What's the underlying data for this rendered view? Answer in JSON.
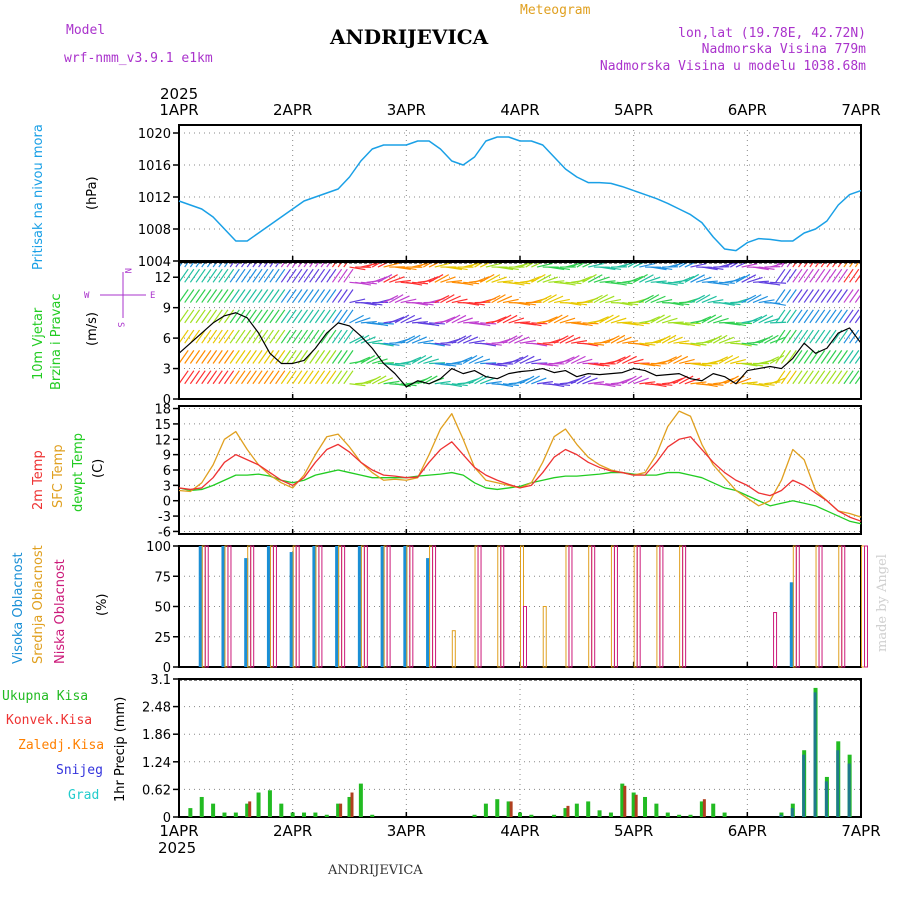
{
  "header": {
    "model_label": "Model",
    "model_name": "wrf-nmm_v3.9.1 e1km",
    "station": "ANDRIJEVICA",
    "meteogram": "Meteogram",
    "lonlat": "lon,lat (19.78E, 42.72N)",
    "elevation": "Nadmorska Visina 779m",
    "model_elevation": "Nadmorska Visina u modelu 1038.68m",
    "year_top": "2025",
    "year_bottom": "2025",
    "footer_station": "ANDRIJEVICA",
    "watermark": "made by Angel"
  },
  "colors": {
    "pressure": "#1aa0e6",
    "temp2m": "#ee3333",
    "sfc": "#e0a020",
    "dew": "#22cc22",
    "high_cloud": "#1a8fd6",
    "mid_cloud": "#e0a020",
    "low_cloud": "#cc1a7a",
    "total_precip": "#22bb22",
    "conv_precip": "#ee3333",
    "frz_precip": "#ff8000",
    "snow": "#3333dd",
    "grad": "#22cccc",
    "wind_hdr": "#aa33cc"
  },
  "chart_data": [
    {
      "type": "line",
      "panel": "pressure",
      "x_labels": [
        "1APR",
        "2APR",
        "3APR",
        "4APR",
        "5APR",
        "6APR",
        "7APR"
      ],
      "ylabel_name": "Pritisak na nivou mora",
      "ylabel_unit": "(hPa)",
      "ylim": [
        1004,
        1021
      ],
      "yticks": [
        1004,
        1008,
        1012,
        1016,
        1020
      ],
      "grid": true,
      "x": [
        0,
        0.1,
        0.2,
        0.3,
        0.4,
        0.5,
        0.6,
        0.7,
        0.8,
        0.9,
        1.0,
        1.1,
        1.2,
        1.3,
        1.4,
        1.5,
        1.6,
        1.7,
        1.8,
        1.9,
        2.0,
        2.1,
        2.2,
        2.3,
        2.4,
        2.5,
        2.6,
        2.7,
        2.8,
        2.9,
        3.0,
        3.1,
        3.2,
        3.3,
        3.4,
        3.5,
        3.6,
        3.7,
        3.8,
        3.9,
        4.0,
        4.1,
        4.2,
        4.3,
        4.4,
        4.5,
        4.6,
        4.7,
        4.8,
        4.9,
        5.0,
        5.1,
        5.2,
        5.3,
        5.4,
        5.5,
        5.6,
        5.7,
        5.8,
        5.9,
        6.0
      ],
      "series": [
        {
          "name": "Pritisak na nivou mora",
          "values": [
            1011.5,
            1011.0,
            1010.5,
            1009.5,
            1008.0,
            1006.5,
            1006.5,
            1007.5,
            1008.5,
            1009.5,
            1010.5,
            1011.5,
            1012.0,
            1012.5,
            1013.0,
            1014.5,
            1016.5,
            1018.0,
            1018.5,
            1018.5,
            1018.5,
            1019.0,
            1019.0,
            1018.0,
            1016.5,
            1016.0,
            1017.0,
            1019.0,
            1019.5,
            1019.5,
            1019.0,
            1019.0,
            1018.5,
            1017.0,
            1015.5,
            1014.5,
            1013.8,
            1013.8,
            1013.7,
            1013.3,
            1012.8,
            1012.3,
            1011.8,
            1011.2,
            1010.5,
            1009.8,
            1008.8,
            1007.0,
            1005.5,
            1005.3,
            1006.3,
            1006.8,
            1006.7,
            1006.5,
            1006.5,
            1007.5,
            1008.0,
            1009.0,
            1011.0,
            1012.3,
            1012.8
          ]
        }
      ]
    },
    {
      "type": "line",
      "panel": "wind",
      "x_labels": [
        "1APR",
        "2APR",
        "3APR",
        "4APR",
        "5APR",
        "6APR",
        "7APR"
      ],
      "ylabel_name": "10m Vjetar",
      "ylabel_name2": "Brzina i Pravac",
      "ylabel_unit": "(m/s)",
      "compass_n": "N",
      "compass_s": "S",
      "compass_w": "W",
      "compass_e": "E",
      "ylim": [
        0,
        13.5
      ],
      "yticks": [
        0,
        3,
        6,
        9,
        12
      ],
      "grid": true,
      "x": [
        0,
        0.1,
        0.2,
        0.3,
        0.4,
        0.5,
        0.6,
        0.7,
        0.8,
        0.9,
        1.0,
        1.1,
        1.2,
        1.3,
        1.4,
        1.5,
        1.6,
        1.7,
        1.8,
        1.9,
        2.0,
        2.1,
        2.2,
        2.3,
        2.4,
        2.5,
        2.6,
        2.7,
        2.8,
        2.9,
        3.0,
        3.1,
        3.2,
        3.3,
        3.4,
        3.5,
        3.6,
        3.7,
        3.8,
        3.9,
        4.0,
        4.1,
        4.2,
        4.3,
        4.4,
        4.5,
        4.6,
        4.7,
        4.8,
        4.9,
        5.0,
        5.1,
        5.2,
        5.3,
        5.4,
        5.5,
        5.6,
        5.7,
        5.8,
        5.9,
        6.0
      ],
      "series": [
        {
          "name": "speed",
          "values": [
            4.5,
            5.5,
            6.5,
            7.5,
            8.2,
            8.5,
            8.0,
            6.5,
            4.5,
            3.5,
            3.5,
            3.8,
            5.0,
            6.5,
            7.5,
            7.2,
            6.2,
            5.0,
            3.5,
            2.5,
            1.2,
            1.8,
            1.5,
            2.0,
            3.0,
            2.5,
            2.8,
            2.2,
            2.0,
            2.5,
            2.7,
            2.8,
            3.0,
            2.6,
            2.8,
            2.2,
            2.5,
            2.4,
            2.5,
            2.6,
            3.0,
            2.8,
            2.3,
            2.4,
            2.5,
            2.0,
            1.8,
            2.5,
            2.2,
            1.5,
            2.8,
            3.0,
            3.2,
            3.0,
            4.0,
            5.5,
            4.5,
            5.0,
            6.5,
            7.0,
            5.5
          ]
        }
      ]
    },
    {
      "type": "line",
      "panel": "temperature",
      "x_labels": [
        "1APR",
        "2APR",
        "3APR",
        "4APR",
        "5APR",
        "6APR",
        "7APR"
      ],
      "ylabel_names": [
        "2m Temp",
        "SFC Temp",
        "dewpt Temp"
      ],
      "ylabel_unit": "(C)",
      "ylim": [
        -6.5,
        18.5
      ],
      "yticks": [
        -6,
        -3,
        0,
        3,
        6,
        9,
        12,
        15,
        18
      ],
      "grid": true,
      "x": [
        0,
        0.1,
        0.2,
        0.3,
        0.4,
        0.5,
        0.6,
        0.7,
        0.8,
        0.9,
        1.0,
        1.1,
        1.2,
        1.3,
        1.4,
        1.5,
        1.6,
        1.7,
        1.8,
        1.9,
        2.0,
        2.1,
        2.2,
        2.3,
        2.4,
        2.5,
        2.6,
        2.7,
        2.8,
        2.9,
        3.0,
        3.1,
        3.2,
        3.3,
        3.4,
        3.5,
        3.6,
        3.7,
        3.8,
        3.9,
        4.0,
        4.1,
        4.2,
        4.3,
        4.4,
        4.5,
        4.6,
        4.7,
        4.8,
        4.9,
        5.0,
        5.1,
        5.2,
        5.3,
        5.4,
        5.5,
        5.6,
        5.7,
        5.8,
        5.9,
        6.0
      ],
      "series": [
        {
          "name": "2m Temp",
          "values": [
            2.5,
            2.2,
            2.5,
            4.5,
            7.5,
            9.0,
            8.0,
            7.0,
            5.5,
            4.0,
            3.0,
            4.5,
            7.5,
            10.0,
            11.0,
            9.5,
            7.5,
            6.0,
            5.0,
            4.8,
            4.5,
            4.6,
            7.5,
            10.0,
            11.5,
            9.0,
            6.5,
            5.0,
            4.0,
            3.2,
            2.5,
            3.0,
            5.5,
            8.5,
            10.0,
            9.0,
            7.5,
            6.5,
            5.8,
            5.5,
            5.0,
            5.0,
            7.5,
            10.5,
            12.0,
            12.5,
            10.0,
            7.5,
            5.5,
            4.0,
            3.0,
            1.5,
            1.0,
            2.0,
            4.0,
            3.0,
            1.5,
            0.0,
            -2.0,
            -3.2,
            -4.0
          ]
        },
        {
          "name": "SFC Temp",
          "values": [
            2.0,
            1.8,
            3.5,
            7.0,
            12.0,
            13.5,
            10.0,
            7.0,
            5.0,
            3.5,
            2.5,
            5.0,
            9.0,
            12.5,
            13.0,
            10.5,
            7.5,
            5.5,
            4.0,
            4.2,
            4.0,
            4.5,
            9.0,
            14.0,
            17.0,
            12.0,
            6.5,
            4.0,
            3.5,
            3.0,
            2.5,
            3.5,
            7.5,
            12.5,
            14.0,
            11.0,
            8.5,
            7.0,
            6.0,
            5.5,
            5.0,
            5.5,
            9.0,
            14.5,
            17.5,
            16.5,
            11.0,
            7.0,
            4.5,
            2.0,
            0.5,
            -1.0,
            0.0,
            4.0,
            10.0,
            8.0,
            2.0,
            0.0,
            -2.0,
            -2.5,
            -3.2
          ]
        },
        {
          "name": "dewpt Temp",
          "values": [
            2.5,
            2.0,
            2.2,
            3.0,
            4.0,
            5.0,
            5.0,
            5.2,
            4.8,
            4.0,
            3.5,
            4.0,
            5.0,
            5.5,
            6.0,
            5.5,
            5.0,
            4.5,
            4.5,
            4.5,
            4.5,
            4.8,
            5.0,
            5.2,
            5.5,
            5.0,
            3.5,
            2.5,
            2.2,
            2.5,
            2.8,
            3.5,
            4.0,
            4.5,
            4.8,
            4.8,
            5.0,
            5.2,
            5.5,
            5.5,
            5.2,
            5.0,
            5.0,
            5.5,
            5.5,
            5.0,
            4.5,
            3.5,
            2.5,
            2.0,
            1.0,
            0.0,
            -1.0,
            -0.5,
            0.0,
            -0.5,
            -1.0,
            -2.0,
            -3.0,
            -4.0,
            -4.5
          ]
        }
      ]
    },
    {
      "type": "bar",
      "panel": "clouds",
      "x_labels": [
        "1APR",
        "2APR",
        "3APR",
        "4APR",
        "5APR",
        "6APR",
        "7APR"
      ],
      "ylabel_names": [
        "Visoka Oblacnost",
        "Srednja Oblacnost",
        "Niska Oblacnost"
      ],
      "ylabel_unit": "(%)",
      "ylim": [
        0,
        100
      ],
      "yticks": [
        0,
        25,
        50,
        75,
        100
      ],
      "grid": true,
      "x": [
        0,
        0.2,
        0.4,
        0.6,
        0.8,
        1.0,
        1.2,
        1.4,
        1.6,
        1.8,
        2.0,
        2.2,
        2.4,
        2.6,
        2.8,
        3.0,
        3.2,
        3.4,
        3.6,
        3.8,
        4.0,
        4.2,
        4.4,
        4.6,
        4.8,
        5.0,
        5.2,
        5.4,
        5.6,
        5.8,
        6.0
      ],
      "series": [
        {
          "name": "Visoka Oblacnost",
          "values": [
            0,
            100,
            100,
            90,
            100,
            95,
            100,
            100,
            100,
            100,
            100,
            90,
            0,
            0,
            0,
            0,
            0,
            0,
            0,
            0,
            0,
            0,
            0,
            0,
            0,
            0,
            0,
            70,
            0,
            0,
            0
          ]
        },
        {
          "name": "Srednja Oblacnost",
          "values": [
            0,
            100,
            100,
            100,
            100,
            100,
            100,
            100,
            100,
            100,
            100,
            100,
            30,
            100,
            100,
            100,
            50,
            100,
            100,
            100,
            100,
            100,
            100,
            0,
            0,
            0,
            0,
            100,
            100,
            100,
            100
          ]
        },
        {
          "name": "Niska Oblacnost",
          "values": [
            0,
            100,
            100,
            100,
            100,
            100,
            100,
            100,
            100,
            100,
            100,
            100,
            0,
            100,
            100,
            50,
            0,
            100,
            100,
            100,
            100,
            100,
            100,
            0,
            0,
            0,
            45,
            100,
            100,
            100,
            100
          ]
        }
      ]
    },
    {
      "type": "bar",
      "panel": "precipitation",
      "x_labels": [
        "1APR",
        "2APR",
        "3APR",
        "4APR",
        "5APR",
        "6APR",
        "7APR"
      ],
      "ylabel_unit": "1hr Precip (mm)",
      "legend": [
        "Ukupna Kisa",
        "Konvek.Kisa",
        "Zaledj.Kisa",
        "Snijeg",
        "Grad"
      ],
      "ylim": [
        0,
        3.1
      ],
      "yticks": [
        0,
        0.62,
        1.24,
        1.86,
        2.48,
        3.1
      ],
      "grid": true,
      "x": [
        0.1,
        0.2,
        0.3,
        0.4,
        0.5,
        0.6,
        0.7,
        0.8,
        0.9,
        1.0,
        1.1,
        1.2,
        1.3,
        1.4,
        1.5,
        1.6,
        1.7,
        1.8,
        1.9,
        2.0,
        2.1,
        2.2,
        2.3,
        2.4,
        2.5,
        2.6,
        2.7,
        2.8,
        2.9,
        3.0,
        3.1,
        3.2,
        3.3,
        3.4,
        3.5,
        3.6,
        3.7,
        3.8,
        3.9,
        4.0,
        4.1,
        4.2,
        4.3,
        4.4,
        4.5,
        4.6,
        4.7,
        4.8,
        4.9,
        5.0,
        5.1,
        5.2,
        5.3,
        5.4,
        5.5,
        5.6,
        5.7,
        5.8,
        5.9
      ],
      "series": [
        {
          "name": "Ukupna Kisa",
          "values": [
            0.2,
            0.45,
            0.3,
            0.1,
            0.1,
            0.3,
            0.55,
            0.6,
            0.3,
            0.1,
            0.1,
            0.1,
            0.05,
            0.3,
            0.45,
            0.75,
            0.05,
            0.0,
            0.0,
            0.0,
            0.0,
            0.0,
            0.0,
            0.0,
            0.0,
            0.05,
            0.3,
            0.4,
            0.35,
            0.1,
            0.05,
            0.0,
            0.05,
            0.2,
            0.3,
            0.35,
            0.15,
            0.1,
            0.75,
            0.55,
            0.45,
            0.3,
            0.1,
            0.05,
            0.05,
            0.35,
            0.3,
            0.1,
            0.0,
            0.0,
            0.0,
            0.0,
            0.1,
            0.3,
            1.5,
            2.9,
            0.9,
            1.7,
            1.4
          ]
        },
        {
          "name": "Konvek.Kisa",
          "values": [
            0.0,
            0.0,
            0.0,
            0.0,
            0.0,
            0.35,
            0.0,
            0.0,
            0.0,
            0.0,
            0.0,
            0.0,
            0.0,
            0.3,
            0.55,
            0.0,
            0.0,
            0.0,
            0.0,
            0.0,
            0.0,
            0.0,
            0.0,
            0.0,
            0.0,
            0.0,
            0.0,
            0.0,
            0.35,
            0.0,
            0.0,
            0.0,
            0.0,
            0.25,
            0.0,
            0.0,
            0.0,
            0.0,
            0.7,
            0.5,
            0.0,
            0.0,
            0.0,
            0.0,
            0.0,
            0.4,
            0.0,
            0.0,
            0.0,
            0.0,
            0.0,
            0.0,
            0.0,
            0.0,
            0.0,
            0.0,
            0.0,
            0.0,
            0.0
          ]
        },
        {
          "name": "Snijeg",
          "values": [
            0,
            0,
            0,
            0,
            0,
            0,
            0,
            0,
            0,
            0,
            0,
            0,
            0,
            0,
            0,
            0,
            0,
            0,
            0,
            0,
            0,
            0,
            0,
            0,
            0,
            0,
            0,
            0,
            0,
            0,
            0,
            0,
            0,
            0,
            0,
            0,
            0,
            0,
            0,
            0,
            0,
            0,
            0,
            0,
            0,
            0,
            0,
            0,
            0,
            0,
            0,
            0,
            0.05,
            0.2,
            1.4,
            2.8,
            0.8,
            1.5,
            1.2
          ]
        }
      ]
    }
  ]
}
